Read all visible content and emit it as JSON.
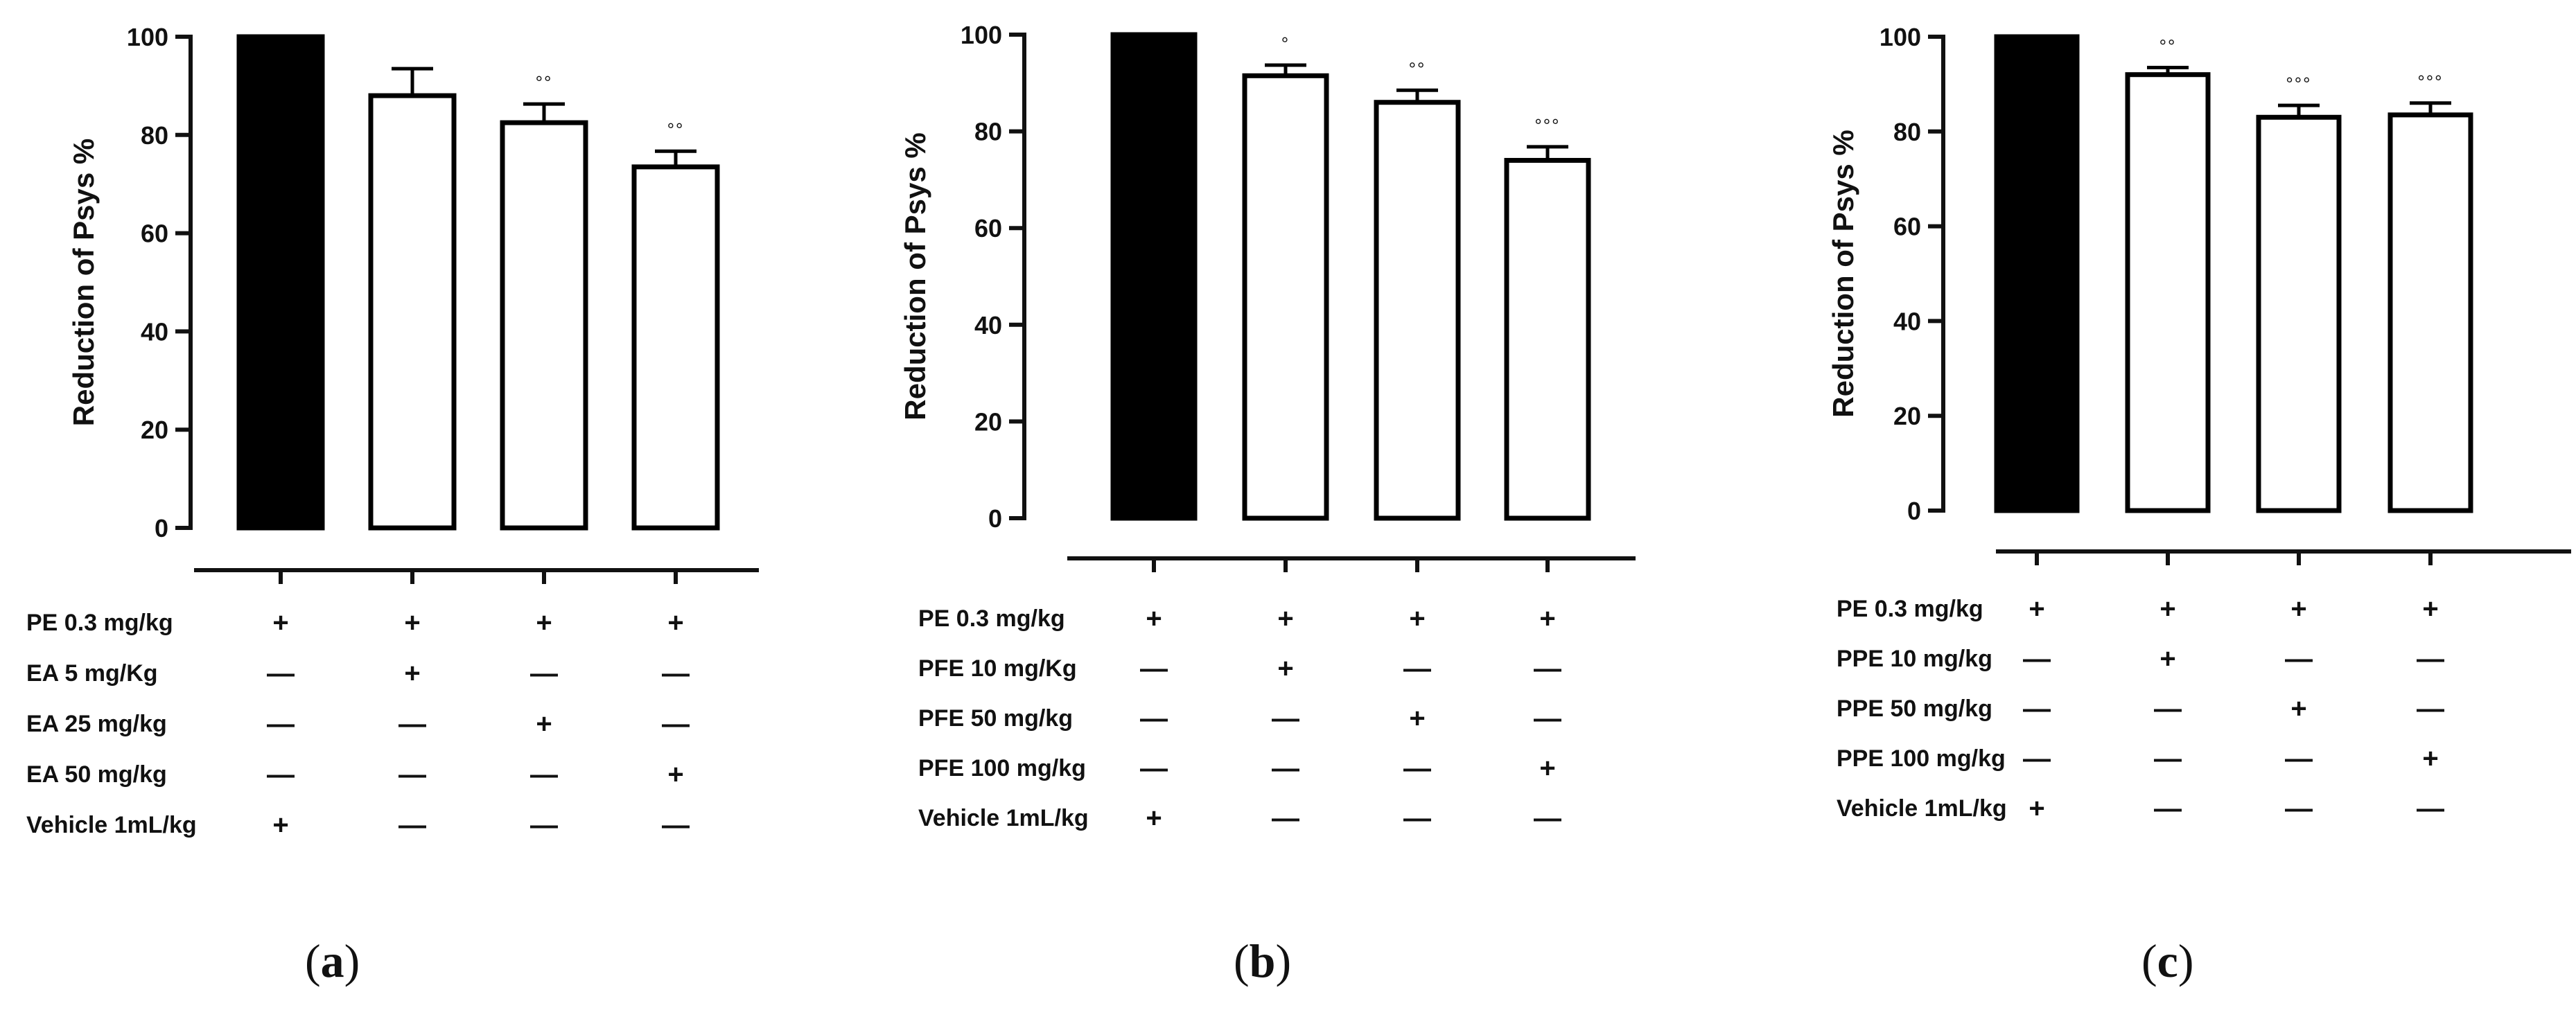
{
  "chart_data": [
    {
      "type": "bar",
      "panel_label": "a",
      "ylabel": "Reduction of Psys %",
      "ylim": [
        0,
        100
      ],
      "yticks": [
        0,
        20,
        40,
        60,
        80,
        100
      ],
      "values": [
        100,
        88,
        82.5,
        73.5
      ],
      "errors": [
        0,
        5.5,
        3.8,
        3.2
      ],
      "bar_fill": [
        "filled",
        "empty",
        "empty",
        "empty"
      ],
      "significance": [
        "",
        "",
        "°°",
        "°°"
      ],
      "treatments": [
        {
          "label": "PE 0.3 mg/kg",
          "marks": [
            "+",
            "+",
            "+",
            "+"
          ]
        },
        {
          "label": "EA  5 mg/Kg",
          "marks": [
            "—",
            "+",
            "—",
            "—"
          ]
        },
        {
          "label": "EA  25  mg/kg",
          "marks": [
            "—",
            "—",
            "+",
            "—"
          ]
        },
        {
          "label": "EA 50 mg/kg",
          "marks": [
            "—",
            "—",
            "—",
            "+"
          ]
        },
        {
          "label": "Vehicle 1mL/kg",
          "marks": [
            "+",
            "—",
            "—",
            "—"
          ]
        }
      ]
    },
    {
      "type": "bar",
      "panel_label": "b",
      "ylabel": "Reduction of Psys %",
      "ylim": [
        0,
        100
      ],
      "yticks": [
        0,
        20,
        40,
        60,
        80,
        100
      ],
      "values": [
        100,
        91.5,
        86,
        74
      ],
      "errors": [
        0,
        2.2,
        2.5,
        2.8
      ],
      "bar_fill": [
        "filled",
        "empty",
        "empty",
        "empty"
      ],
      "significance": [
        "",
        "°",
        "°°",
        "°°°"
      ],
      "treatments": [
        {
          "label": "PE 0.3 mg/kg",
          "marks": [
            "+",
            "+",
            "+",
            "+"
          ]
        },
        {
          "label": "PFE 10 mg/Kg",
          "marks": [
            "—",
            "+",
            "—",
            "—"
          ]
        },
        {
          "label": "PFE  50 mg/kg",
          "marks": [
            "—",
            "—",
            "+",
            "—"
          ]
        },
        {
          "label": "PFE 100 mg/kg",
          "marks": [
            "—",
            "—",
            "—",
            "+"
          ]
        },
        {
          "label": "Vehicle  1mL/kg",
          "marks": [
            "+",
            "—",
            "—",
            "—"
          ]
        }
      ]
    },
    {
      "type": "bar",
      "panel_label": "c",
      "ylabel": "Reduction of Psys %",
      "ylim": [
        0,
        100
      ],
      "yticks": [
        0,
        20,
        40,
        60,
        80,
        100
      ],
      "values": [
        100,
        92,
        83,
        83.5
      ],
      "errors": [
        0,
        1.5,
        2.5,
        2.5
      ],
      "bar_fill": [
        "filled",
        "empty",
        "empty",
        "empty"
      ],
      "significance": [
        "",
        "°°",
        "°°°",
        "°°°"
      ],
      "treatments": [
        {
          "label": "PE  0.3 mg/kg",
          "marks": [
            "+",
            "+",
            "+",
            "+"
          ]
        },
        {
          "label": "PPE  10 mg/kg",
          "marks": [
            "—",
            "+",
            "—",
            "—"
          ]
        },
        {
          "label": "PPE  50  mg/kg",
          "marks": [
            "—",
            "—",
            "+",
            "—"
          ]
        },
        {
          "label": "PPE 100 mg/kg",
          "marks": [
            "—",
            "—",
            "—",
            "+"
          ]
        },
        {
          "label": "Vehicle 1mL/kg",
          "marks": [
            "+",
            "—",
            "—",
            "—"
          ]
        }
      ]
    }
  ],
  "captions": [
    {
      "open": "(",
      "letter": "a",
      "close": ")"
    },
    {
      "open": "(",
      "letter": "b",
      "close": ")"
    },
    {
      "open": "(",
      "letter": "c",
      "close": ")"
    }
  ]
}
